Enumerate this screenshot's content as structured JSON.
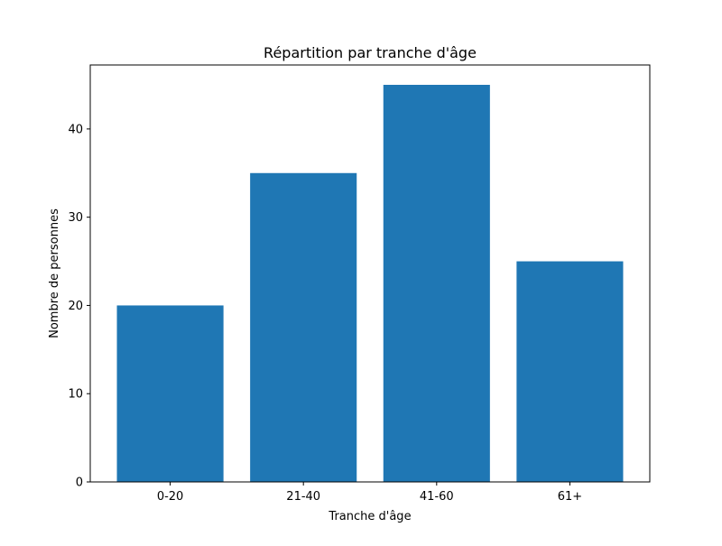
{
  "chart_data": {
    "type": "bar",
    "title": "Répartition par tranche d'âge",
    "xlabel": "Tranche d'âge",
    "ylabel": "Nombre de personnes",
    "categories": [
      "0-20",
      "21-40",
      "41-60",
      "61+"
    ],
    "values": [
      20,
      35,
      45,
      25
    ],
    "ylim": [
      0,
      47.25
    ],
    "yticks": [
      0,
      10,
      20,
      30,
      40
    ],
    "grid": false,
    "legend": "none",
    "bar_color": "#1f77b4"
  }
}
